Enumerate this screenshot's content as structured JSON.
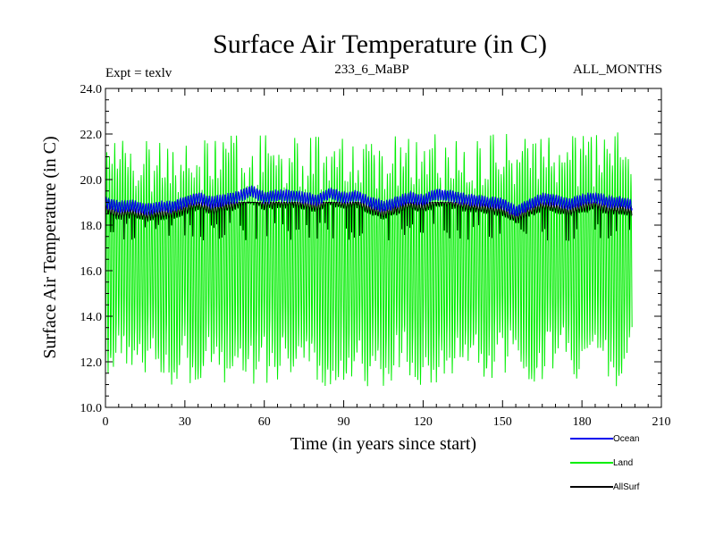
{
  "chart_data": {
    "type": "line",
    "title": "Surface Air Temperature (in C)",
    "subtitle_left": "Expt = texlv",
    "subtitle_center": "233_6_MaBP",
    "subtitle_right": "ALL_MONTHS",
    "xlabel": "Time (in years since start)",
    "ylabel": "Surface Air Temperature (in C)",
    "xlim": [
      0,
      210
    ],
    "ylim": [
      10.0,
      24.0
    ],
    "x_ticks": [
      0,
      30,
      60,
      90,
      120,
      150,
      180,
      210
    ],
    "x_tick_labels": [
      "0",
      "30",
      "60",
      "90",
      "120",
      "150",
      "180",
      "210"
    ],
    "y_ticks": [
      10,
      12,
      14,
      16,
      18,
      20,
      22,
      24
    ],
    "y_tick_labels": [
      "10.0",
      "12.0",
      "14.0",
      "16.0",
      "18.0",
      "20.0",
      "22.0",
      "24.0"
    ],
    "x_start": 0,
    "x_end": 199,
    "legend_position": "bottom-right",
    "series": [
      {
        "name": "Land",
        "color": "#00ee00",
        "style": "monthly-seasonal",
        "summer_peak_approx": [
          19.5,
          22.0
        ],
        "winter_trough_approx": [
          11.0,
          13.5
        ],
        "mean": 16.0
      },
      {
        "name": "AllSurf",
        "color": "#000000",
        "style": "monthly-seasonal",
        "range_approx": [
          17.3,
          19.0
        ]
      },
      {
        "name": "Ocean",
        "color": "#0000ee",
        "style": "monthly-seasonal",
        "smooth_by_year": [
          [
            0,
            19.0
          ],
          [
            5,
            18.8
          ],
          [
            10,
            18.85
          ],
          [
            15,
            18.7
          ],
          [
            20,
            18.8
          ],
          [
            25,
            18.8
          ],
          [
            30,
            19.0
          ],
          [
            35,
            19.2
          ],
          [
            40,
            19.0
          ],
          [
            45,
            19.1
          ],
          [
            50,
            19.25
          ],
          [
            55,
            19.5
          ],
          [
            60,
            19.2
          ],
          [
            65,
            19.3
          ],
          [
            70,
            19.3
          ],
          [
            75,
            19.2
          ],
          [
            80,
            19.1
          ],
          [
            85,
            19.4
          ],
          [
            90,
            19.2
          ],
          [
            95,
            19.3
          ],
          [
            100,
            19.0
          ],
          [
            105,
            18.8
          ],
          [
            110,
            19.0
          ],
          [
            115,
            19.2
          ],
          [
            120,
            19.1
          ],
          [
            125,
            19.35
          ],
          [
            130,
            19.3
          ],
          [
            135,
            19.15
          ],
          [
            140,
            19.1
          ],
          [
            145,
            19.0
          ],
          [
            150,
            18.95
          ],
          [
            155,
            18.6
          ],
          [
            160,
            18.9
          ],
          [
            165,
            19.15
          ],
          [
            170,
            19.1
          ],
          [
            175,
            18.9
          ],
          [
            180,
            19.1
          ],
          [
            185,
            19.2
          ],
          [
            190,
            19.0
          ],
          [
            195,
            19.0
          ],
          [
            199,
            18.9
          ]
        ],
        "monthly_half_range_approx": 0.22
      }
    ]
  }
}
